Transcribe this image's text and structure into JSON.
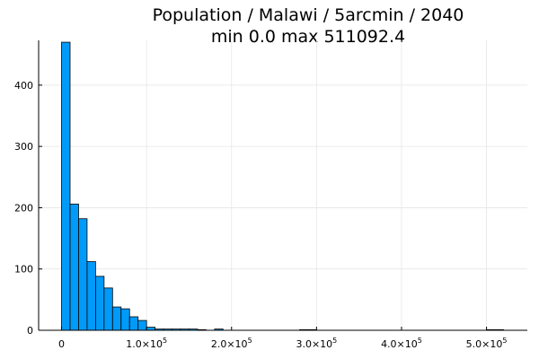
{
  "chart_data": {
    "type": "bar",
    "title_line1": "Population / Malawi / 5arcmin / 2040",
    "title_line2": "min 0.0  max 511092.4",
    "xlabel": "",
    "ylabel": "",
    "bin_width": 10000,
    "bins": [
      {
        "start": 0,
        "count": 470
      },
      {
        "start": 10000,
        "count": 206
      },
      {
        "start": 20000,
        "count": 182
      },
      {
        "start": 30000,
        "count": 112
      },
      {
        "start": 40000,
        "count": 88
      },
      {
        "start": 50000,
        "count": 69
      },
      {
        "start": 60000,
        "count": 38
      },
      {
        "start": 70000,
        "count": 35
      },
      {
        "start": 80000,
        "count": 22
      },
      {
        "start": 90000,
        "count": 16
      },
      {
        "start": 100000,
        "count": 5
      },
      {
        "start": 110000,
        "count": 2
      },
      {
        "start": 120000,
        "count": 2
      },
      {
        "start": 130000,
        "count": 2
      },
      {
        "start": 140000,
        "count": 2
      },
      {
        "start": 150000,
        "count": 2
      },
      {
        "start": 160000,
        "count": 1
      },
      {
        "start": 180000,
        "count": 2
      },
      {
        "start": 280000,
        "count": 1
      },
      {
        "start": 290000,
        "count": 1
      },
      {
        "start": 500000,
        "count": 1
      },
      {
        "start": 510000,
        "count": 1
      }
    ],
    "xlim": [
      -27000,
      548000
    ],
    "ylim": [
      0,
      473
    ],
    "x_ticks": [
      {
        "value": 0,
        "mantissa": "0",
        "exponent": ""
      },
      {
        "value": 100000,
        "mantissa": "1.0×10",
        "exponent": "5"
      },
      {
        "value": 200000,
        "mantissa": "2.0×10",
        "exponent": "5"
      },
      {
        "value": 300000,
        "mantissa": "3.0×10",
        "exponent": "5"
      },
      {
        "value": 400000,
        "mantissa": "4.0×10",
        "exponent": "5"
      },
      {
        "value": 500000,
        "mantissa": "5.0×10",
        "exponent": "5"
      }
    ],
    "y_ticks": [
      0,
      100,
      200,
      300,
      400
    ],
    "grid": true,
    "legend": "none",
    "bar_color": "#009AF9"
  }
}
